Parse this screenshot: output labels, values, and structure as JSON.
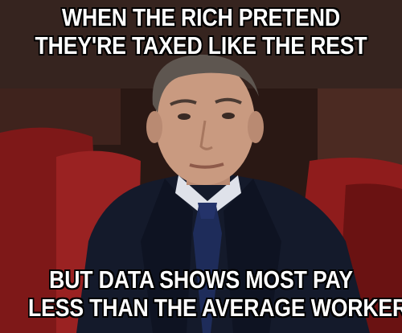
{
  "meme": {
    "top_caption": [
      "WHEN THE RICH PRETEND",
      "THEY'RE TAXED LIKE THE REST"
    ],
    "bottom_caption": [
      "BUT DATA SHOWS MOST PAY",
      "LESS THAN THE AVERAGE WORKER"
    ]
  },
  "colors": {
    "caption_text": "#ffffff",
    "caption_outline": "#000000",
    "seat_red": "#8f1c1c",
    "suit_navy": "#141a2b",
    "tie_blue": "#1e2c5a"
  }
}
